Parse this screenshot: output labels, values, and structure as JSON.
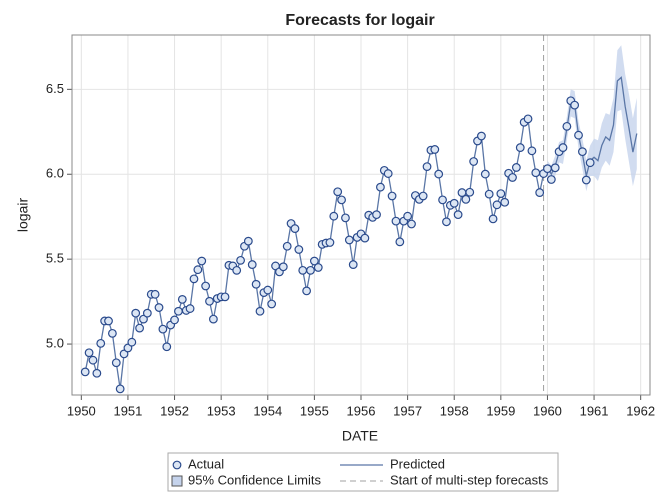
{
  "chart_data": {
    "type": "line",
    "title": "Forecasts for logair",
    "x_label": "DATE",
    "y_label": "logair",
    "x": [
      "1950-02",
      "1950-03",
      "1950-04",
      "1950-05",
      "1950-06",
      "1950-07",
      "1950-08",
      "1950-09",
      "1950-10",
      "1950-11",
      "1950-12",
      "1951-01",
      "1951-02",
      "1951-03",
      "1951-04",
      "1951-05",
      "1951-06",
      "1951-07",
      "1951-08",
      "1951-09",
      "1951-10",
      "1951-11",
      "1951-12",
      "1952-01",
      "1952-02",
      "1952-03",
      "1952-04",
      "1952-05",
      "1952-06",
      "1952-07",
      "1952-08",
      "1952-09",
      "1952-10",
      "1952-11",
      "1952-12",
      "1953-01",
      "1953-02",
      "1953-03",
      "1953-04",
      "1953-05",
      "1953-06",
      "1953-07",
      "1953-08",
      "1953-09",
      "1953-10",
      "1953-11",
      "1953-12",
      "1954-01",
      "1954-02",
      "1954-03",
      "1954-04",
      "1954-05",
      "1954-06",
      "1954-07",
      "1954-08",
      "1954-09",
      "1954-10",
      "1954-11",
      "1954-12",
      "1955-01",
      "1955-02",
      "1955-03",
      "1955-04",
      "1955-05",
      "1955-06",
      "1955-07",
      "1955-08",
      "1955-09",
      "1955-10",
      "1955-11",
      "1955-12",
      "1956-01",
      "1956-02",
      "1956-03",
      "1956-04",
      "1956-05",
      "1956-06",
      "1956-07",
      "1956-08",
      "1956-09",
      "1956-10",
      "1956-11",
      "1956-12",
      "1957-01",
      "1957-02",
      "1957-03",
      "1957-04",
      "1957-05",
      "1957-06",
      "1957-07",
      "1957-08",
      "1957-09",
      "1957-10",
      "1957-11",
      "1957-12",
      "1958-01",
      "1958-02",
      "1958-03",
      "1958-04",
      "1958-05",
      "1958-06",
      "1958-07",
      "1958-08",
      "1958-09",
      "1958-10",
      "1958-11",
      "1958-12",
      "1959-01",
      "1959-02",
      "1959-03",
      "1959-04",
      "1959-05",
      "1959-06",
      "1959-07",
      "1959-08",
      "1959-09",
      "1959-10",
      "1959-11",
      "1959-12",
      "1960-01",
      "1960-02",
      "1960-03",
      "1960-04",
      "1960-05",
      "1960-06",
      "1960-07",
      "1960-08",
      "1960-09",
      "1960-10",
      "1960-11",
      "1960-12",
      "1961-01",
      "1961-02",
      "1961-03",
      "1961-04",
      "1961-05",
      "1961-06",
      "1961-07",
      "1961-08",
      "1961-09",
      "1961-10",
      "1961-11",
      "1961-12"
    ],
    "series": [
      {
        "name": "Actual",
        "color": "#2a4a8c",
        "marker": "circle",
        "values": [
          4.836,
          4.949,
          4.905,
          4.828,
          5.004,
          5.136,
          5.136,
          5.063,
          4.89,
          4.736,
          4.942,
          4.977,
          5.011,
          5.182,
          5.094,
          5.147,
          5.182,
          5.293,
          5.293,
          5.215,
          5.088,
          4.984,
          5.112,
          5.142,
          5.193,
          5.263,
          5.198,
          5.209,
          5.384,
          5.438,
          5.489,
          5.342,
          5.252,
          5.147,
          5.268,
          5.278,
          5.278,
          5.464,
          5.46,
          5.434,
          5.493,
          5.576,
          5.606,
          5.468,
          5.352,
          5.193,
          5.303,
          5.318,
          5.236,
          5.46,
          5.425,
          5.455,
          5.576,
          5.71,
          5.68,
          5.557,
          5.434,
          5.313,
          5.434,
          5.489,
          5.451,
          5.587,
          5.595,
          5.598,
          5.753,
          5.897,
          5.849,
          5.743,
          5.613,
          5.468,
          5.628,
          5.649,
          5.624,
          5.759,
          5.746,
          5.762,
          5.924,
          6.023,
          6.004,
          5.872,
          5.724,
          5.602,
          5.724,
          5.753,
          5.707,
          5.875,
          5.852,
          5.872,
          6.045,
          6.142,
          6.146,
          6.001,
          5.849,
          5.72,
          5.817,
          5.829,
          5.762,
          5.892,
          5.852,
          5.894,
          6.075,
          6.196,
          6.225,
          6.001,
          5.883,
          5.737,
          5.82,
          5.886,
          5.835,
          6.006,
          5.981,
          6.04,
          6.157,
          6.306,
          6.326,
          6.138,
          6.009,
          5.892,
          6.004,
          6.033,
          5.969,
          6.038,
          6.133,
          6.157,
          6.282,
          6.433,
          6.407,
          6.23,
          6.133,
          5.966,
          6.068,
          null,
          null,
          null,
          null,
          null,
          null,
          null,
          null,
          null,
          null,
          null,
          null
        ]
      },
      {
        "name": "Predicted",
        "color": "#5a76a6",
        "values": [
          4.836,
          4.949,
          4.905,
          4.828,
          5.004,
          5.136,
          5.136,
          5.063,
          4.89,
          4.736,
          4.942,
          4.977,
          5.011,
          5.182,
          5.094,
          5.147,
          5.182,
          5.293,
          5.293,
          5.215,
          5.088,
          4.984,
          5.112,
          5.142,
          5.193,
          5.263,
          5.198,
          5.209,
          5.384,
          5.438,
          5.489,
          5.342,
          5.252,
          5.147,
          5.268,
          5.278,
          5.278,
          5.464,
          5.46,
          5.434,
          5.493,
          5.576,
          5.606,
          5.468,
          5.352,
          5.193,
          5.303,
          5.318,
          5.236,
          5.46,
          5.425,
          5.455,
          5.576,
          5.71,
          5.68,
          5.557,
          5.434,
          5.313,
          5.434,
          5.489,
          5.451,
          5.587,
          5.595,
          5.598,
          5.753,
          5.897,
          5.849,
          5.743,
          5.613,
          5.468,
          5.628,
          5.649,
          5.624,
          5.759,
          5.746,
          5.762,
          5.924,
          6.023,
          6.004,
          5.872,
          5.724,
          5.602,
          5.724,
          5.753,
          5.707,
          5.875,
          5.852,
          5.872,
          6.045,
          6.142,
          6.146,
          6.001,
          5.849,
          5.72,
          5.817,
          5.829,
          5.762,
          5.892,
          5.852,
          5.894,
          6.075,
          6.196,
          6.225,
          6.001,
          5.883,
          5.737,
          5.82,
          5.886,
          5.835,
          6.006,
          5.981,
          6.04,
          6.157,
          6.306,
          6.326,
          6.138,
          6.009,
          5.892,
          6.004,
          6.04,
          6.0,
          6.05,
          6.13,
          6.13,
          6.27,
          6.42,
          6.41,
          6.23,
          6.12,
          5.99,
          6.08,
          6.1,
          6.08,
          6.17,
          6.22,
          6.2,
          6.29,
          6.55,
          6.57,
          6.4,
          6.27,
          6.13,
          6.24
        ]
      }
    ],
    "band": {
      "name": "95% Confidence Limits",
      "color": "#c5d3ec",
      "lower": [
        null,
        null,
        null,
        null,
        null,
        null,
        null,
        null,
        null,
        null,
        null,
        null,
        null,
        null,
        null,
        null,
        null,
        null,
        null,
        null,
        null,
        null,
        null,
        null,
        null,
        null,
        null,
        null,
        null,
        null,
        null,
        null,
        null,
        null,
        null,
        null,
        null,
        null,
        null,
        null,
        null,
        null,
        null,
        null,
        null,
        null,
        null,
        null,
        null,
        null,
        null,
        null,
        null,
        null,
        null,
        null,
        null,
        null,
        null,
        null,
        null,
        null,
        null,
        null,
        null,
        null,
        null,
        null,
        null,
        null,
        null,
        null,
        null,
        null,
        null,
        null,
        null,
        null,
        null,
        null,
        null,
        null,
        null,
        null,
        null,
        null,
        null,
        null,
        null,
        null,
        null,
        null,
        null,
        null,
        null,
        null,
        null,
        null,
        null,
        null,
        null,
        null,
        null,
        null,
        null,
        null,
        null,
        null,
        null,
        null,
        null,
        null,
        null,
        null,
        null,
        null,
        null,
        null,
        null,
        6.0,
        5.95,
        5.99,
        6.07,
        6.06,
        6.2,
        6.34,
        6.33,
        6.15,
        6.03,
        5.9,
        5.99,
        5.99,
        5.96,
        6.04,
        6.08,
        6.05,
        6.13,
        6.37,
        6.38,
        6.21,
        6.07,
        5.93,
        6.03
      ],
      "upper": [
        null,
        null,
        null,
        null,
        null,
        null,
        null,
        null,
        null,
        null,
        null,
        null,
        null,
        null,
        null,
        null,
        null,
        null,
        null,
        null,
        null,
        null,
        null,
        null,
        null,
        null,
        null,
        null,
        null,
        null,
        null,
        null,
        null,
        null,
        null,
        null,
        null,
        null,
        null,
        null,
        null,
        null,
        null,
        null,
        null,
        null,
        null,
        null,
        null,
        null,
        null,
        null,
        null,
        null,
        null,
        null,
        null,
        null,
        null,
        null,
        null,
        null,
        null,
        null,
        null,
        null,
        null,
        null,
        null,
        null,
        null,
        null,
        null,
        null,
        null,
        null,
        null,
        null,
        null,
        null,
        null,
        null,
        null,
        null,
        null,
        null,
        null,
        null,
        null,
        null,
        null,
        null,
        null,
        null,
        null,
        null,
        null,
        null,
        null,
        null,
        null,
        null,
        null,
        null,
        null,
        null,
        null,
        null,
        null,
        null,
        null,
        null,
        null,
        null,
        null,
        null,
        null,
        null,
        null,
        6.08,
        6.05,
        6.11,
        6.19,
        6.2,
        6.34,
        6.5,
        6.49,
        6.31,
        6.21,
        6.08,
        6.17,
        6.21,
        6.2,
        6.3,
        6.36,
        6.35,
        6.45,
        6.73,
        6.76,
        6.59,
        6.47,
        6.33,
        6.45
      ]
    },
    "reference_line": {
      "x": "1959-12",
      "label": "Start of multi-step forecasts",
      "color": "#a0a0a0"
    },
    "xlim": [
      1949.8,
      1962.2
    ],
    "xticks": [
      1950,
      1951,
      1952,
      1953,
      1954,
      1955,
      1956,
      1957,
      1958,
      1959,
      1960,
      1961,
      1962
    ],
    "ylim": [
      4.7,
      6.82
    ],
    "yticks": [
      {
        "value": 5,
        "label": "5.0"
      },
      5.5,
      {
        "value": 6,
        "label": "6.0"
      },
      6.5
    ],
    "grid": true,
    "legend": "bottom"
  }
}
